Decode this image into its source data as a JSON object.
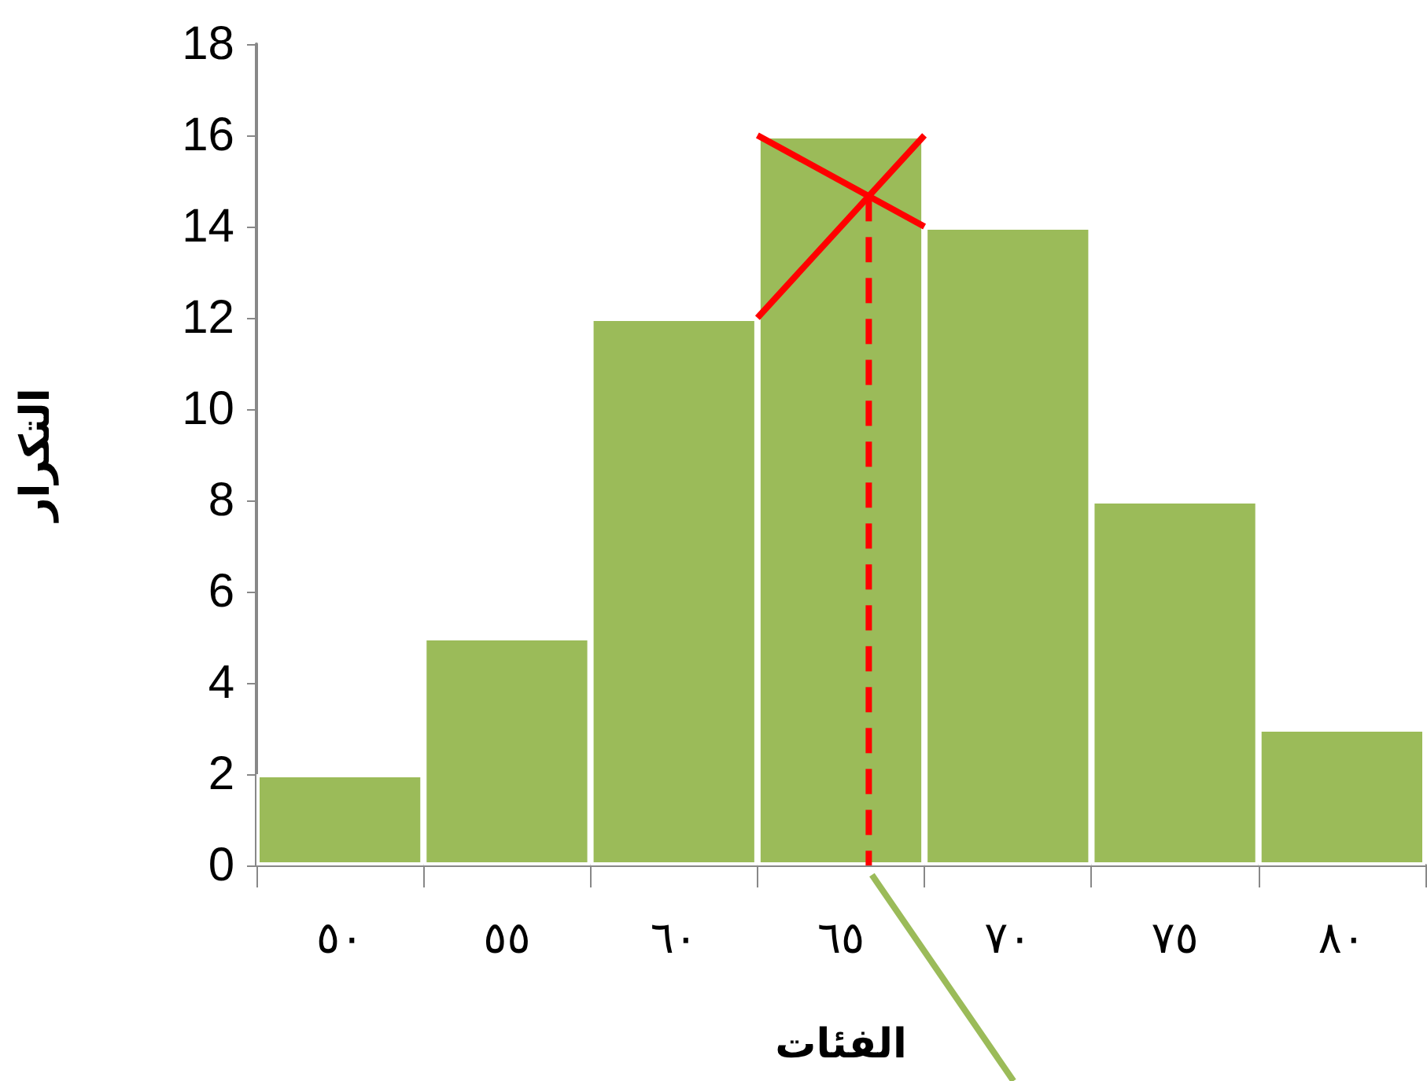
{
  "chart_data": {
    "type": "bar",
    "xlabel": "الفئات",
    "ylabel": "التكرار",
    "categories": [
      "٥٠",
      "٥٥",
      "٦٠",
      "٦٥",
      "٧٠",
      "٧٥",
      "٨٠"
    ],
    "values": [
      2,
      5,
      12,
      16,
      14,
      8,
      3
    ],
    "color": "#9bbb59",
    "ylim": [
      0,
      18
    ],
    "yticks": [
      0,
      2,
      4,
      6,
      8,
      10,
      12,
      14,
      16,
      18
    ],
    "grid": false
  }
}
